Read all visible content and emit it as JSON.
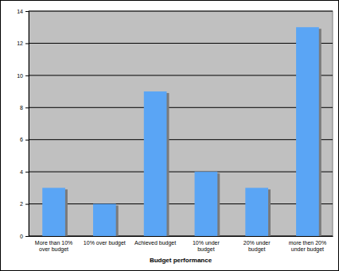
{
  "chart_data": {
    "type": "bar",
    "x_label": "Budget performance",
    "categories": [
      "More than 10% over budget",
      "10% over budget",
      "Achieved budget",
      "10% under budget",
      "20% under budget",
      "more then 20% under budget"
    ],
    "values": [
      3,
      2,
      9,
      4,
      3,
      13
    ],
    "color": "#5aa5f5",
    "ylim": [
      0,
      14
    ],
    "yticks": [
      0,
      2,
      4,
      6,
      8,
      10,
      12,
      14
    ],
    "grid": true
  }
}
